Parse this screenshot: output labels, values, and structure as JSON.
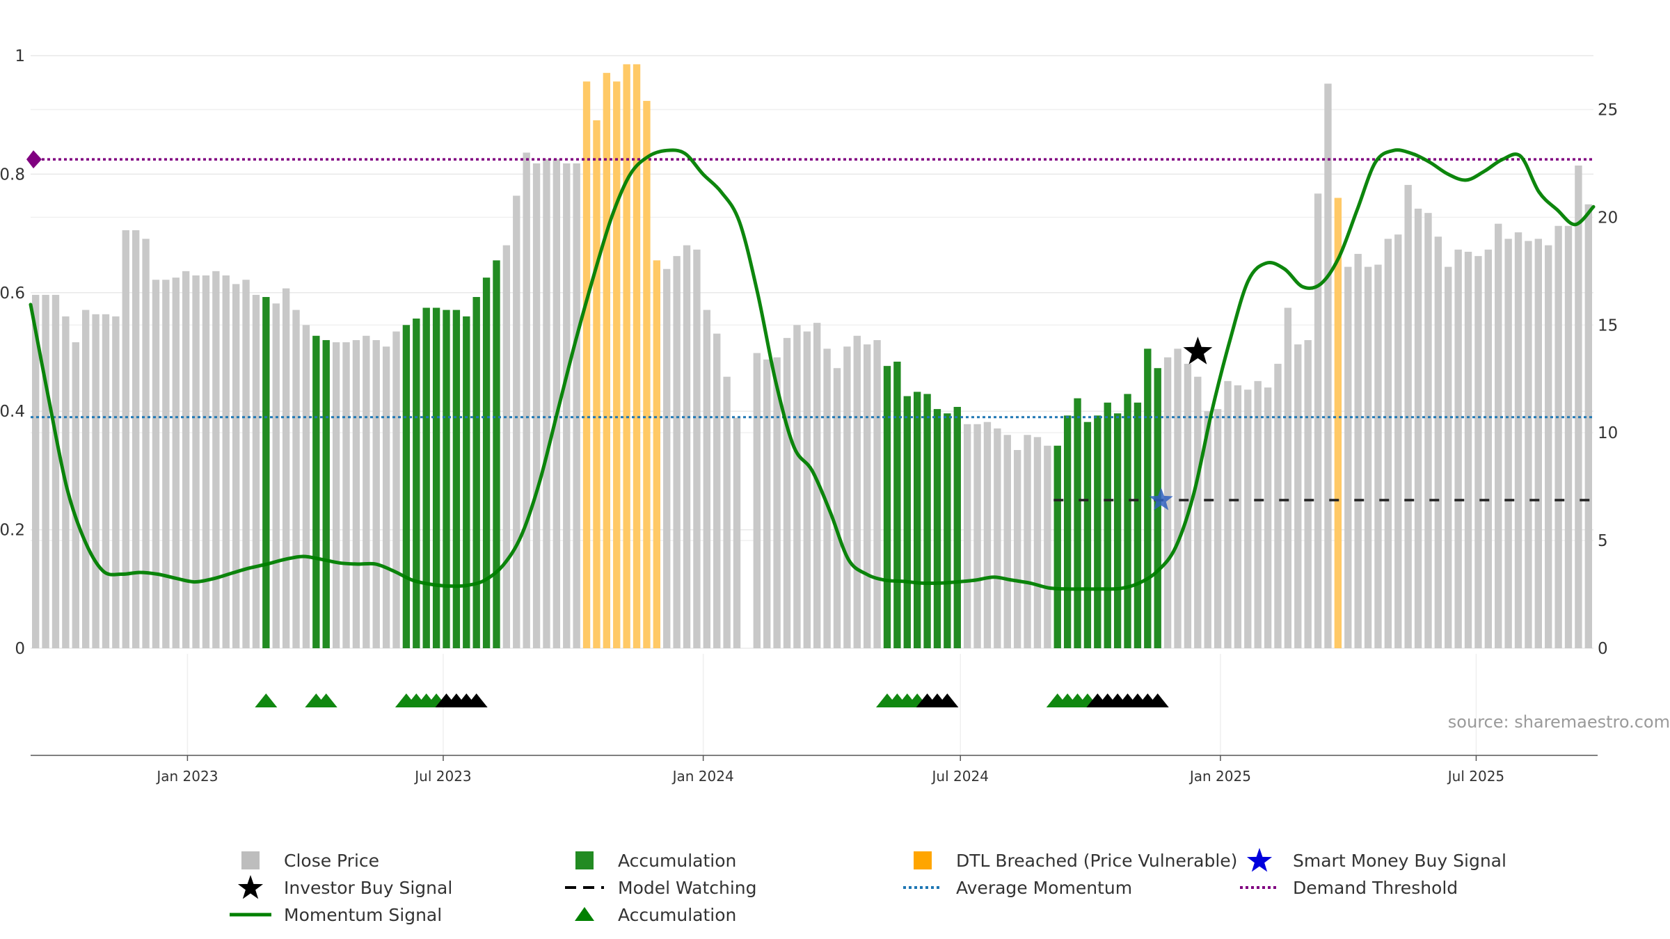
{
  "chart_data": {
    "type": "bar",
    "source_text": "source: sharemaestro.com",
    "left_axis": {
      "range": [
        0,
        1
      ],
      "ticks": [
        "0",
        "0.2",
        "0.4",
        "0.6",
        "0.8",
        "1"
      ]
    },
    "right_axis": {
      "range": [
        0,
        27.5
      ],
      "ticks": [
        "0",
        "5",
        "10",
        "15",
        "20",
        "25"
      ]
    },
    "x_axis": {
      "start": "2022-09-12",
      "end": "2025-09-22",
      "ticks": [
        {
          "date": "2023-01-01",
          "label": "Jan 2023"
        },
        {
          "date": "2023-07-01",
          "label": "Jul 2023"
        },
        {
          "date": "2024-01-01",
          "label": "Jan 2024"
        },
        {
          "date": "2024-07-01",
          "label": "Jul 2024"
        },
        {
          "date": "2025-01-01",
          "label": "Jan 2025"
        },
        {
          "date": "2025-07-01",
          "label": "Jul 2025"
        }
      ]
    },
    "close_price": [
      16.4,
      16.4,
      16.4,
      15.4,
      14.2,
      15.7,
      15.5,
      15.5,
      15.4,
      19.4,
      19.4,
      19.0,
      17.1,
      17.1,
      17.2,
      17.5,
      17.3,
      17.3,
      17.5,
      17.3,
      16.9,
      17.1,
      16.4,
      16.3,
      16.0,
      16.7,
      15.7,
      15.0,
      14.5,
      14.3,
      14.2,
      14.2,
      14.3,
      14.5,
      14.3,
      14.0,
      14.7,
      15.0,
      15.3,
      15.8,
      15.8,
      15.7,
      15.7,
      15.4,
      16.3,
      17.2,
      18.0,
      18.7,
      21.0,
      23.0,
      22.5,
      22.7,
      22.7,
      22.5,
      22.5,
      26.3,
      24.5,
      26.7,
      26.3,
      27.1,
      27.1,
      25.4,
      18.0,
      17.6,
      18.2,
      18.7,
      18.5,
      15.7,
      14.6,
      12.6,
      10.7,
      0,
      13.7,
      13.4,
      13.5,
      14.4,
      15.0,
      14.7,
      15.1,
      13.9,
      13.0,
      14.0,
      14.5,
      14.1,
      14.3,
      13.1,
      13.3,
      11.7,
      11.9,
      11.8,
      11.1,
      10.9,
      11.2,
      10.4,
      10.4,
      10.5,
      10.2,
      9.9,
      9.2,
      9.9,
      9.8,
      9.4,
      9.4,
      10.8,
      11.6,
      10.5,
      10.8,
      11.4,
      10.9,
      11.8,
      11.4,
      13.9,
      13.0,
      13.5,
      13.9,
      13.2,
      12.6,
      11.0,
      11.1,
      12.4,
      12.2,
      12.0,
      12.4,
      12.1,
      13.2,
      15.8,
      14.1,
      14.3,
      21.1,
      26.2,
      20.9,
      17.7,
      18.3,
      17.7,
      17.8,
      19.0,
      19.2,
      21.5,
      20.4,
      20.2,
      19.1,
      17.7,
      18.5,
      18.4,
      18.2,
      18.5,
      19.7,
      19.0,
      19.3,
      18.9,
      19.0,
      18.7,
      19.6,
      19.6,
      22.4,
      20.6
    ],
    "vulnerable_bars": [
      55,
      56,
      57,
      58,
      59,
      60,
      61,
      62,
      130
    ],
    "accumulation_bars": [
      23,
      28,
      29,
      37,
      38,
      39,
      40,
      41,
      42,
      43,
      44,
      45,
      46,
      85,
      86,
      87,
      88,
      89,
      90,
      91,
      92,
      102,
      103,
      104,
      105,
      106,
      107,
      108,
      109,
      110,
      111,
      112
    ],
    "momentum_signal": [
      0.58,
      0.42,
      0.27,
      0.18,
      0.13,
      0.125,
      0.128,
      0.125,
      0.118,
      0.112,
      0.117,
      0.126,
      0.135,
      0.142,
      0.15,
      0.155,
      0.15,
      0.144,
      0.142,
      0.142,
      0.13,
      0.115,
      0.108,
      0.105,
      0.106,
      0.115,
      0.14,
      0.19,
      0.28,
      0.4,
      0.52,
      0.63,
      0.73,
      0.8,
      0.83,
      0.84,
      0.835,
      0.8,
      0.77,
      0.72,
      0.6,
      0.45,
      0.34,
      0.3,
      0.23,
      0.15,
      0.125,
      0.115,
      0.113,
      0.11,
      0.11,
      0.112,
      0.115,
      0.12,
      0.115,
      0.11,
      0.102,
      0.1,
      0.1,
      0.1,
      0.101,
      0.11,
      0.13,
      0.17,
      0.26,
      0.4,
      0.52,
      0.62,
      0.65,
      0.64,
      0.61,
      0.615,
      0.66,
      0.74,
      0.82,
      0.84,
      0.835,
      0.82,
      0.8,
      0.79,
      0.805,
      0.825,
      0.83,
      0.77,
      0.74,
      0.715,
      0.745
    ],
    "momentum_start": "2022-09-12",
    "momentum_end": "2025-09-22",
    "average_momentum": 0.39,
    "demand_threshold": 0.825,
    "model_watching": {
      "from": "2024-09-05",
      "to": "2025-09-22",
      "value": 0.25
    },
    "investor_buy_signal": {
      "date": "2024-12-16",
      "value": 0.5
    },
    "smart_money_buy_signal": {
      "date": "2024-11-20",
      "value": 0.25
    },
    "accumulation_markers": [
      {
        "bar": 23,
        "color": "green"
      },
      {
        "bar": 28,
        "color": "green"
      },
      {
        "bar": 29,
        "color": "green"
      },
      {
        "bar": 37,
        "color": "green"
      },
      {
        "bar": 38,
        "color": "green"
      },
      {
        "bar": 39,
        "color": "green"
      },
      {
        "bar": 40,
        "color": "green"
      },
      {
        "bar": 41,
        "color": "black"
      },
      {
        "bar": 42,
        "color": "black"
      },
      {
        "bar": 43,
        "color": "black"
      },
      {
        "bar": 44,
        "color": "black"
      },
      {
        "bar": 85,
        "color": "green"
      },
      {
        "bar": 86,
        "color": "green"
      },
      {
        "bar": 87,
        "color": "green"
      },
      {
        "bar": 88,
        "color": "green"
      },
      {
        "bar": 89,
        "color": "black"
      },
      {
        "bar": 90,
        "color": "black"
      },
      {
        "bar": 91,
        "color": "black"
      },
      {
        "bar": 102,
        "color": "green"
      },
      {
        "bar": 103,
        "color": "green"
      },
      {
        "bar": 104,
        "color": "green"
      },
      {
        "bar": 105,
        "color": "green"
      },
      {
        "bar": 106,
        "color": "black"
      },
      {
        "bar": 107,
        "color": "black"
      },
      {
        "bar": 108,
        "color": "black"
      },
      {
        "bar": 109,
        "color": "black"
      },
      {
        "bar": 110,
        "color": "black"
      },
      {
        "bar": 111,
        "color": "black"
      },
      {
        "bar": 112,
        "color": "black"
      }
    ],
    "legend": [
      {
        "key": "close",
        "label": "Close Price",
        "symbol": "square",
        "color": "#bdbdbd"
      },
      {
        "key": "accum_bar",
        "label": "Accumulation",
        "symbol": "square",
        "color": "#228B22"
      },
      {
        "key": "dtl",
        "label": "DTL Breached (Price Vulnerable)",
        "symbol": "square",
        "color": "#FFA500"
      },
      {
        "key": "smart",
        "label": "Smart Money Buy Signal",
        "symbol": "star",
        "color": "#0000DD"
      },
      {
        "key": "investor",
        "label": "Investor Buy Signal",
        "symbol": "star",
        "color": "#000000"
      },
      {
        "key": "watching",
        "label": "Model Watching",
        "symbol": "dash",
        "color": "#000000"
      },
      {
        "key": "avg",
        "label": "Average Momentum",
        "symbol": "dot",
        "color": "#1f77b4"
      },
      {
        "key": "threshold",
        "label": "Demand Threshold",
        "symbol": "dot",
        "color": "#800080"
      },
      {
        "key": "momentum",
        "label": "Momentum Signal",
        "symbol": "line",
        "color": "#008000"
      },
      {
        "key": "accum_tri",
        "label": "Accumulation",
        "symbol": "triangle",
        "color": "#008000"
      }
    ],
    "colors": {
      "close": "#c8c8c8",
      "accumulation": "#228B22",
      "vulnerable": "#FFC966",
      "momentum": "#008000",
      "average": "#1f77b4",
      "threshold": "#800080",
      "grid": "#e8e8e8"
    }
  }
}
